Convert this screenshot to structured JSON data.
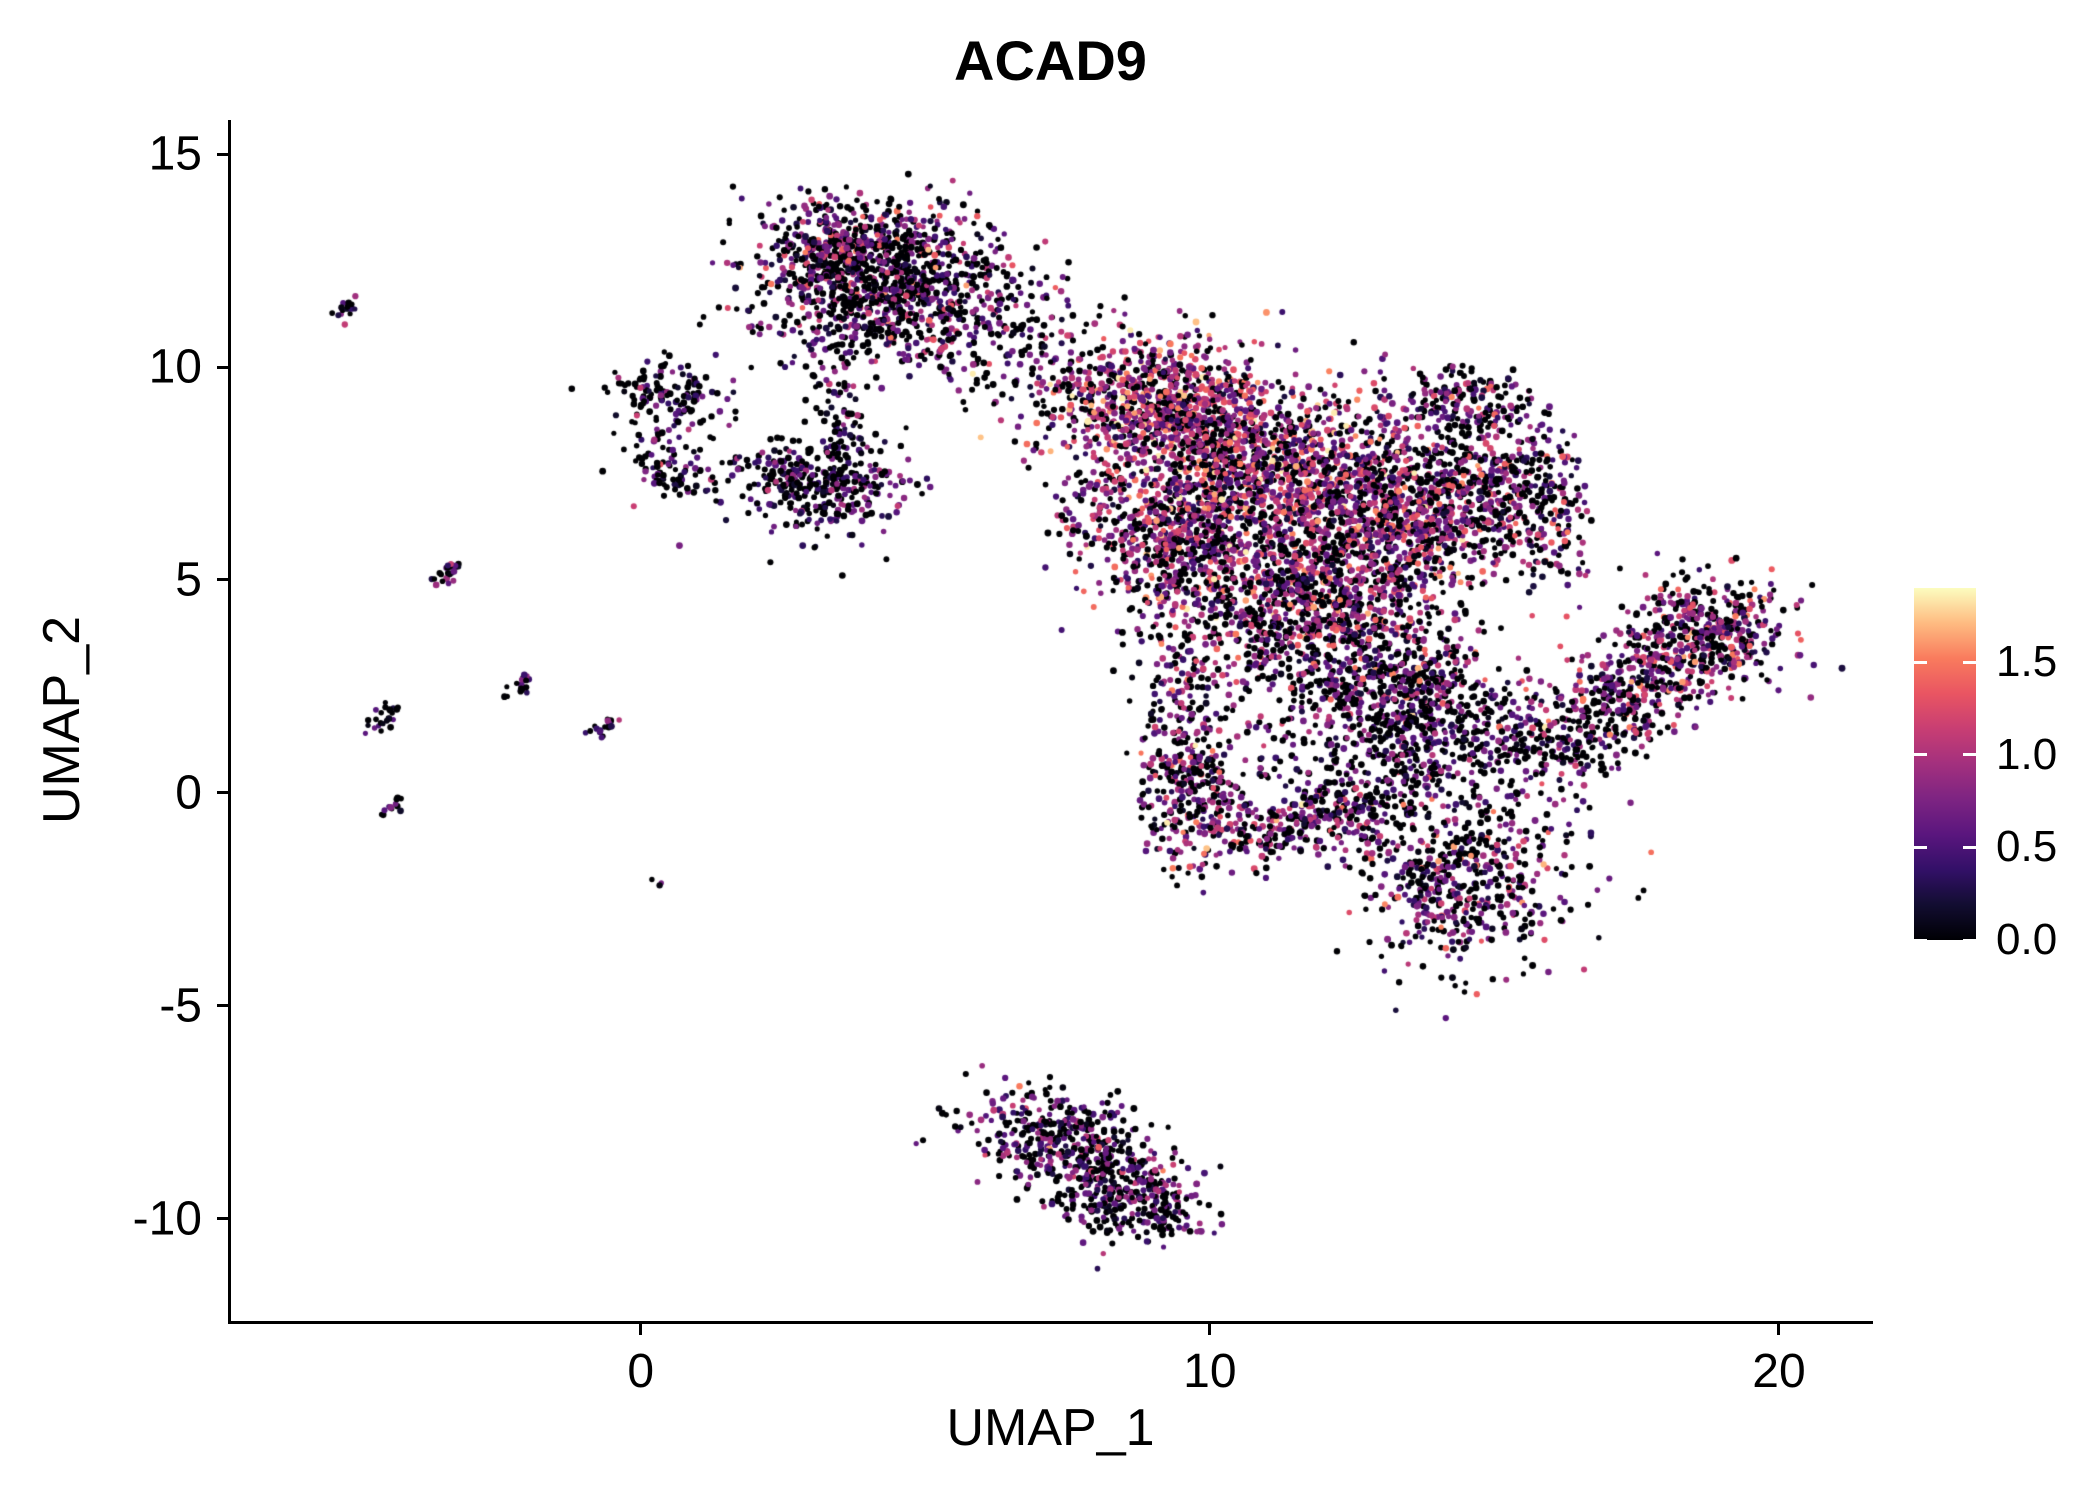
{
  "title": "ACAD9",
  "background": "#ffffff",
  "axis_color": "#000000",
  "chart_data": {
    "type": "scatter",
    "title": "ACAD9",
    "xlabel": "UMAP_1",
    "ylabel": "UMAP_2",
    "xlim": [
      -7.2,
      21.6
    ],
    "ylim": [
      -12.4,
      15.8
    ],
    "x_ticks": [
      0,
      10,
      20
    ],
    "y_ticks": [
      -10,
      -5,
      0,
      5,
      10,
      15
    ],
    "grid": false,
    "legend": {
      "position": "right",
      "ticks": [
        0.0,
        0.5,
        1.0,
        1.5
      ],
      "vmin": 0,
      "vmax": 1.9
    },
    "colormap": {
      "name": "magma",
      "stops": [
        "#000004",
        "#120d31",
        "#331068",
        "#5a167e",
        "#7d2482",
        "#a3307e",
        "#c83e73",
        "#e95562",
        "#f97b5d",
        "#febb81",
        "#fcfdbf"
      ]
    },
    "point_radius": 3.0,
    "seed": 42,
    "clusters": [
      {
        "name": "top-main",
        "shape": "gauss",
        "cx": 4.0,
        "cy": 12.4,
        "sx": 1.05,
        "sy": 0.75,
        "rot": -8,
        "n": 1000,
        "p0": 0.45,
        "mu": 0.72,
        "sig": 0.38
      },
      {
        "name": "top-lower-fringe",
        "shape": "gauss",
        "cx": 4.6,
        "cy": 10.9,
        "sx": 1.15,
        "sy": 0.55,
        "rot": 0,
        "n": 320,
        "p0": 0.5,
        "mu": 0.6,
        "sig": 0.35
      },
      {
        "name": "top-tail",
        "shape": "line",
        "x1": 3.3,
        "y1": 10.0,
        "x2": 3.65,
        "y2": 8.2,
        "w": 0.22,
        "n": 55,
        "p0": 0.55,
        "mu": 0.55,
        "sig": 0.3
      },
      {
        "name": "top-right-sparse",
        "shape": "gauss",
        "cx": 6.6,
        "cy": 11.4,
        "sx": 0.62,
        "sy": 0.7,
        "rot": 0,
        "n": 70,
        "p0": 0.5,
        "mu": 0.65,
        "sig": 0.35
      },
      {
        "name": "bridge-sparse",
        "shape": "gauss",
        "cx": 7.3,
        "cy": 9.6,
        "sx": 0.5,
        "sy": 0.95,
        "rot": 0,
        "n": 75,
        "p0": 0.45,
        "mu": 0.7,
        "sig": 0.35
      },
      {
        "name": "bridge-sparse-2",
        "shape": "gauss",
        "cx": 5.8,
        "cy": 9.7,
        "sx": 0.45,
        "sy": 0.35,
        "rot": 0,
        "n": 22,
        "p0": 0.5,
        "mu": 0.6,
        "sig": 0.3
      },
      {
        "name": "left-small-a1",
        "shape": "gauss",
        "cx": 0.5,
        "cy": 9.3,
        "sx": 0.55,
        "sy": 0.42,
        "rot": -15,
        "n": 140,
        "p0": 0.58,
        "mu": 0.5,
        "sig": 0.3
      },
      {
        "name": "left-small-a2",
        "shape": "gauss",
        "cx": 0.55,
        "cy": 7.6,
        "sx": 0.5,
        "sy": 0.38,
        "rot": -15,
        "n": 85,
        "p0": 0.58,
        "mu": 0.5,
        "sig": 0.3
      },
      {
        "name": "left-small-b",
        "shape": "gauss",
        "cx": 3.2,
        "cy": 7.25,
        "sx": 0.72,
        "sy": 0.6,
        "rot": -12,
        "n": 380,
        "p0": 0.52,
        "mu": 0.55,
        "sig": 0.3
      },
      {
        "name": "main-upper-left",
        "shape": "gauss",
        "cx": 9.1,
        "cy": 9.2,
        "sx": 0.9,
        "sy": 0.75,
        "rot": -15,
        "n": 800,
        "p0": 0.28,
        "mu": 1.0,
        "sig": 0.42
      },
      {
        "name": "main-center",
        "shape": "gauss",
        "cx": 11.0,
        "cy": 7.6,
        "sx": 1.25,
        "sy": 1.0,
        "rot": 0,
        "n": 1100,
        "p0": 0.3,
        "mu": 0.95,
        "sig": 0.42
      },
      {
        "name": "main-right",
        "shape": "gauss",
        "cx": 13.0,
        "cy": 6.3,
        "sx": 1.1,
        "sy": 1.1,
        "rot": 0,
        "n": 900,
        "p0": 0.36,
        "mu": 0.85,
        "sig": 0.4
      },
      {
        "name": "main-left-mid",
        "shape": "gauss",
        "cx": 9.6,
        "cy": 5.9,
        "sx": 0.8,
        "sy": 0.9,
        "rot": 0,
        "n": 600,
        "p0": 0.38,
        "mu": 0.85,
        "sig": 0.4
      },
      {
        "name": "main-lower-center",
        "shape": "gauss",
        "cx": 11.6,
        "cy": 4.4,
        "sx": 1.15,
        "sy": 0.85,
        "rot": 0,
        "n": 700,
        "p0": 0.36,
        "mu": 0.85,
        "sig": 0.4
      },
      {
        "name": "main-left-protrusion",
        "shape": "gauss",
        "cx": 8.1,
        "cy": 6.7,
        "sx": 0.55,
        "sy": 0.8,
        "rot": 0,
        "n": 90,
        "p0": 0.45,
        "mu": 0.75,
        "sig": 0.35
      },
      {
        "name": "main-right-lobe",
        "shape": "gauss",
        "cx": 14.6,
        "cy": 7.2,
        "sx": 0.8,
        "sy": 1.0,
        "rot": 10,
        "n": 430,
        "p0": 0.42,
        "mu": 0.75,
        "sig": 0.4
      },
      {
        "name": "crescent-top",
        "shape": "line",
        "x1": 13.7,
        "y1": 9.5,
        "x2": 15.35,
        "y2": 9.0,
        "w": 0.35,
        "n": 140,
        "p0": 0.45,
        "mu": 0.75,
        "sig": 0.4
      },
      {
        "name": "crescent-right",
        "shape": "line",
        "x1": 15.7,
        "y1": 8.4,
        "x2": 16.3,
        "y2": 5.3,
        "w": 0.32,
        "n": 150,
        "p0": 0.42,
        "mu": 0.75,
        "sig": 0.4
      },
      {
        "name": "main-below-dense",
        "shape": "gauss",
        "cx": 13.6,
        "cy": 2.0,
        "sx": 0.95,
        "sy": 0.85,
        "rot": -20,
        "n": 550,
        "p0": 0.52,
        "mu": 0.6,
        "sig": 0.35
      },
      {
        "name": "main-mid-sparse",
        "shape": "gauss",
        "cx": 12.2,
        "cy": 2.7,
        "sx": 1.05,
        "sy": 0.75,
        "rot": 0,
        "n": 240,
        "p0": 0.5,
        "mu": 0.7,
        "sig": 0.4
      },
      {
        "name": "left-appendage",
        "shape": "gauss",
        "cx": 9.75,
        "cy": 0.1,
        "sx": 0.5,
        "sy": 0.9,
        "rot": 0,
        "n": 320,
        "p0": 0.4,
        "mu": 0.8,
        "sig": 0.4
      },
      {
        "name": "appendage-bridge",
        "shape": "gauss",
        "cx": 9.5,
        "cy": 2.4,
        "sx": 0.42,
        "sy": 0.9,
        "rot": 0,
        "n": 110,
        "p0": 0.45,
        "mu": 0.75,
        "sig": 0.35
      },
      {
        "name": "lower-band",
        "shape": "line",
        "x1": 10.1,
        "y1": -1.05,
        "x2": 13.2,
        "y2": -0.35,
        "w": 0.4,
        "n": 270,
        "p0": 0.42,
        "mu": 0.8,
        "sig": 0.4
      },
      {
        "name": "lower-right-blob",
        "shape": "gauss",
        "cx": 14.4,
        "cy": -2.0,
        "sx": 1.0,
        "sy": 0.95,
        "rot": -30,
        "n": 560,
        "p0": 0.46,
        "mu": 0.7,
        "sig": 0.38
      },
      {
        "name": "blob-bridge-sparse",
        "shape": "gauss",
        "cx": 12.9,
        "cy": 0.4,
        "sx": 1.3,
        "sy": 0.6,
        "rot": 0,
        "n": 170,
        "p0": 0.6,
        "mu": 0.5,
        "sig": 0.3
      },
      {
        "name": "right-sparse",
        "shape": "gauss",
        "cx": 15.6,
        "cy": 0.9,
        "sx": 0.7,
        "sy": 0.5,
        "rot": 0,
        "n": 85,
        "p0": 0.6,
        "mu": 0.5,
        "sig": 0.3
      },
      {
        "name": "right-band",
        "shape": "line",
        "x1": 15.85,
        "y1": 0.8,
        "x2": 19.2,
        "y2": 4.3,
        "w": 0.6,
        "n": 640,
        "p0": 0.4,
        "mu": 0.8,
        "sig": 0.4
      },
      {
        "name": "right-band-head",
        "shape": "gauss",
        "cx": 18.7,
        "cy": 3.7,
        "sx": 0.75,
        "sy": 0.65,
        "rot": -40,
        "n": 240,
        "p0": 0.4,
        "mu": 0.8,
        "sig": 0.4
      },
      {
        "name": "bottom-a",
        "shape": "gauss",
        "cx": 7.3,
        "cy": -8.1,
        "sx": 0.85,
        "sy": 0.52,
        "rot": -10,
        "n": 340,
        "p0": 0.5,
        "mu": 0.6,
        "sig": 0.32
      },
      {
        "name": "bottom-b",
        "shape": "gauss",
        "cx": 8.3,
        "cy": -9.2,
        "sx": 0.7,
        "sy": 0.55,
        "rot": -20,
        "n": 300,
        "p0": 0.48,
        "mu": 0.62,
        "sig": 0.32
      },
      {
        "name": "bottom-tail",
        "shape": "line",
        "x1": 8.8,
        "y1": -9.3,
        "x2": 9.35,
        "y2": -10.2,
        "w": 0.33,
        "n": 85,
        "p0": 0.5,
        "mu": 0.6,
        "sig": 0.3
      },
      {
        "name": "streak-1",
        "shape": "line",
        "x1": -5.35,
        "y1": 11.2,
        "x2": -5.0,
        "y2": 11.55,
        "w": 0.09,
        "n": 20,
        "p0": 0.5,
        "mu": 0.55,
        "sig": 0.3
      },
      {
        "name": "streak-2",
        "shape": "line",
        "x1": -3.55,
        "y1": 4.9,
        "x2": -3.15,
        "y2": 5.45,
        "w": 0.09,
        "n": 24,
        "p0": 0.5,
        "mu": 0.55,
        "sig": 0.3
      },
      {
        "name": "streak-3",
        "shape": "line",
        "x1": -4.75,
        "y1": 1.5,
        "x2": -4.35,
        "y2": 2.0,
        "w": 0.09,
        "n": 24,
        "p0": 0.5,
        "mu": 0.55,
        "sig": 0.3
      },
      {
        "name": "streak-4",
        "shape": "line",
        "x1": -2.3,
        "y1": 2.3,
        "x2": -1.95,
        "y2": 2.75,
        "w": 0.09,
        "n": 18,
        "p0": 0.5,
        "mu": 0.55,
        "sig": 0.3
      },
      {
        "name": "streak-5",
        "shape": "line",
        "x1": -0.85,
        "y1": 1.3,
        "x2": -0.5,
        "y2": 1.7,
        "w": 0.09,
        "n": 18,
        "p0": 0.5,
        "mu": 0.55,
        "sig": 0.3
      },
      {
        "name": "streak-6",
        "shape": "line",
        "x1": -4.5,
        "y1": -0.45,
        "x2": -4.28,
        "y2": -0.1,
        "w": 0.08,
        "n": 12,
        "p0": 0.5,
        "mu": 0.55,
        "sig": 0.3
      },
      {
        "name": "lone-dot",
        "shape": "gauss",
        "cx": 0.3,
        "cy": -2.1,
        "sx": 0.08,
        "sy": 0.08,
        "rot": 0,
        "n": 3,
        "p0": 0.5,
        "mu": 0.5,
        "sig": 0.3
      }
    ]
  }
}
